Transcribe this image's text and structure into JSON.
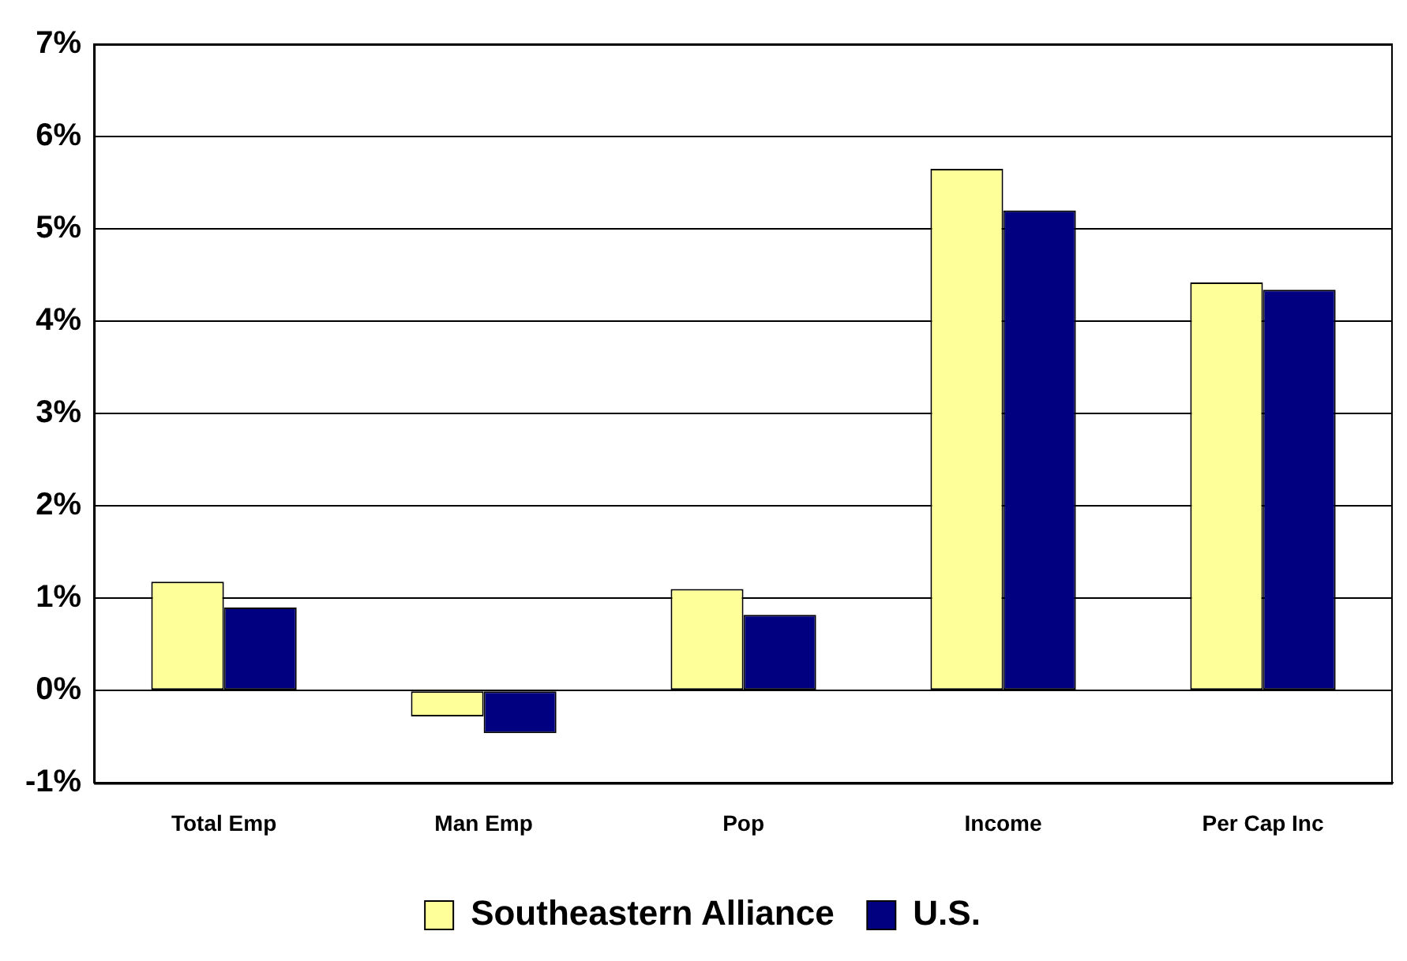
{
  "chart_data": {
    "type": "bar",
    "categories": [
      "Total Emp",
      "Man Emp",
      "Pop",
      "Income",
      "Per Cap Inc"
    ],
    "series": [
      {
        "name": "Southeastern Alliance",
        "color": "#ffff99",
        "values": [
          1.18,
          -0.28,
          1.1,
          5.65,
          4.42
        ]
      },
      {
        "name": "U.S.",
        "color": "#000080",
        "values": [
          0.9,
          -0.46,
          0.82,
          5.2,
          4.34
        ]
      }
    ],
    "ylim": [
      -1,
      7
    ],
    "yticks": [
      {
        "value": -1,
        "label": "-1%"
      },
      {
        "value": 0,
        "label": "0%"
      },
      {
        "value": 1,
        "label": "1%"
      },
      {
        "value": 2,
        "label": "2%"
      },
      {
        "value": 3,
        "label": "3%"
      },
      {
        "value": 4,
        "label": "4%"
      },
      {
        "value": 5,
        "label": "5%"
      },
      {
        "value": 6,
        "label": "6%"
      },
      {
        "value": 7,
        "label": "7%"
      }
    ],
    "grid": "y",
    "legend": "bottom"
  }
}
